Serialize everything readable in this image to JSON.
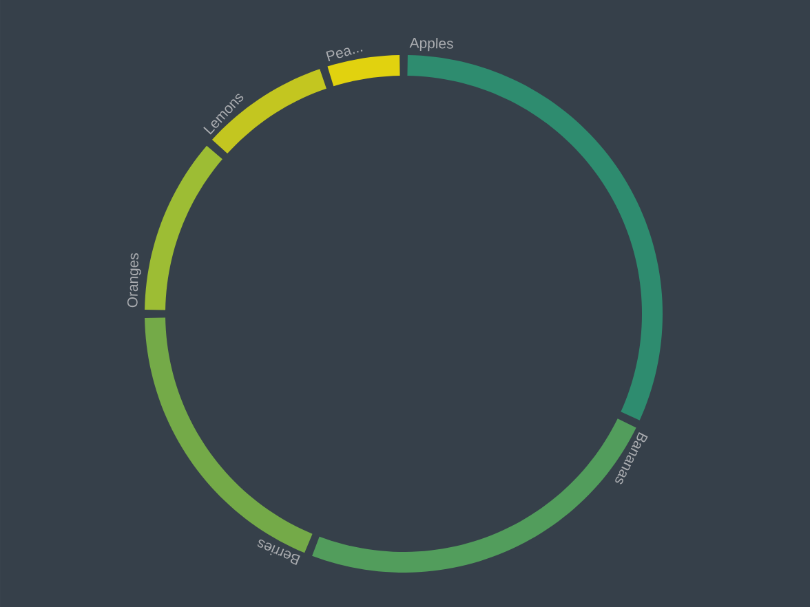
{
  "chart_data": {
    "type": "donut",
    "categories": [
      "Apples",
      "Bananas",
      "Berries",
      "Oranges",
      "Lemons",
      "Pea..."
    ],
    "values": [
      32,
      24,
      19,
      11.5,
      8.5,
      5
    ],
    "colors": [
      "#2e8c6f",
      "#529d5c",
      "#74aa48",
      "#9dbd34",
      "#c3c620",
      "#e1d20f"
    ]
  }
}
